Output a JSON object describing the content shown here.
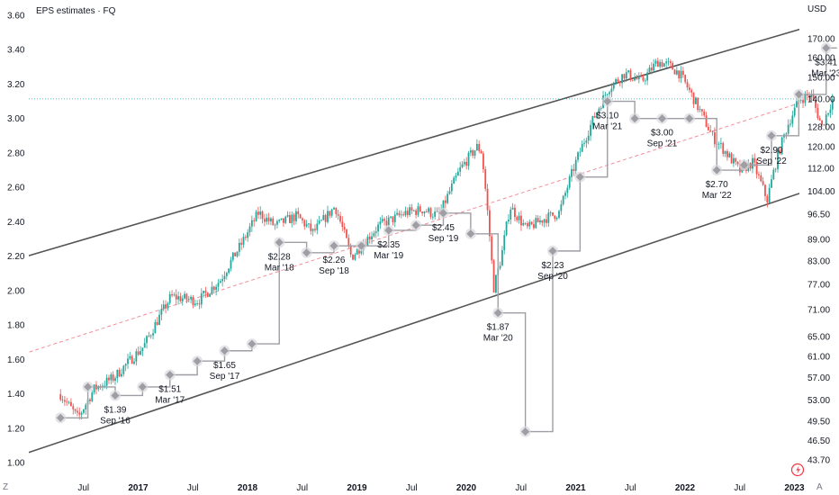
{
  "chart_data": {
    "type": "candlestick",
    "title": "EPS estimates · FQ",
    "currency_label": "USD",
    "corner_left": "Z",
    "corner_right": "A",
    "colors": {
      "up": "#26a69a",
      "down": "#ef5350",
      "channel": "#555555",
      "mid": "#f28e9a",
      "eps_step": "#9e9ea4",
      "eps_marker": "#d8d8de",
      "price_line": "#26a69a"
    },
    "eps_axis": {
      "ticks": [
        "3.60",
        "3.40",
        "3.20",
        "3.00",
        "2.80",
        "2.60",
        "2.40",
        "2.20",
        "2.00",
        "1.80",
        "1.60",
        "1.40",
        "1.20",
        "1.00"
      ],
      "range": [
        1.0,
        3.6
      ]
    },
    "price_axis": {
      "ticks": [
        "170.00",
        "160.00",
        "150.00",
        "140.00",
        "128.00",
        "120.00",
        "112.00",
        "104.00",
        "96.50",
        "89.00",
        "83.00",
        "77.00",
        "71.00",
        "65.00",
        "61.00",
        "57.00",
        "53.00",
        "49.50",
        "46.50",
        "43.70"
      ],
      "scale": "log"
    },
    "time_axis": {
      "ticks": [
        {
          "label": "Jul",
          "t": 2016.5,
          "bold": false
        },
        {
          "label": "2017",
          "t": 2017.0,
          "bold": true
        },
        {
          "label": "Jul",
          "t": 2017.5,
          "bold": false
        },
        {
          "label": "2018",
          "t": 2018.0,
          "bold": true
        },
        {
          "label": "Jul",
          "t": 2018.5,
          "bold": false
        },
        {
          "label": "2019",
          "t": 2019.0,
          "bold": true
        },
        {
          "label": "Jul",
          "t": 2019.5,
          "bold": false
        },
        {
          "label": "2020",
          "t": 2020.0,
          "bold": true
        },
        {
          "label": "Jul",
          "t": 2020.5,
          "bold": false
        },
        {
          "label": "2021",
          "t": 2021.0,
          "bold": true
        },
        {
          "label": "Jul",
          "t": 2021.5,
          "bold": false
        },
        {
          "label": "2022",
          "t": 2022.0,
          "bold": true
        },
        {
          "label": "Jul",
          "t": 2022.5,
          "bold": false
        },
        {
          "label": "2023",
          "t": 2023.0,
          "bold": true
        }
      ]
    },
    "eps_points": [
      {
        "t": 2016.29,
        "eps": 1.26
      },
      {
        "t": 2016.54,
        "eps": 1.44
      },
      {
        "t": 2016.79,
        "eps": 1.39
      },
      {
        "t": 2017.04,
        "eps": 1.44
      },
      {
        "t": 2017.29,
        "eps": 1.51
      },
      {
        "t": 2017.54,
        "eps": 1.59
      },
      {
        "t": 2017.79,
        "eps": 1.65
      },
      {
        "t": 2018.04,
        "eps": 1.69
      },
      {
        "t": 2018.29,
        "eps": 2.28
      },
      {
        "t": 2018.54,
        "eps": 2.22
      },
      {
        "t": 2018.79,
        "eps": 2.26
      },
      {
        "t": 2019.04,
        "eps": 2.26
      },
      {
        "t": 2019.29,
        "eps": 2.35
      },
      {
        "t": 2019.54,
        "eps": 2.38
      },
      {
        "t": 2019.79,
        "eps": 2.45
      },
      {
        "t": 2020.04,
        "eps": 2.33
      },
      {
        "t": 2020.29,
        "eps": 1.87
      },
      {
        "t": 2020.54,
        "eps": 1.18
      },
      {
        "t": 2020.79,
        "eps": 2.23
      },
      {
        "t": 2021.04,
        "eps": 2.66
      },
      {
        "t": 2021.29,
        "eps": 3.1
      },
      {
        "t": 2021.54,
        "eps": 3.0
      },
      {
        "t": 2021.79,
        "eps": 3.0
      },
      {
        "t": 2022.04,
        "eps": 3.0
      },
      {
        "t": 2022.29,
        "eps": 2.7
      },
      {
        "t": 2022.54,
        "eps": 2.73
      },
      {
        "t": 2022.79,
        "eps": 2.9
      },
      {
        "t": 2023.04,
        "eps": 3.14
      },
      {
        "t": 2023.29,
        "eps": 3.41
      }
    ],
    "eps_labels": [
      {
        "value": "$1.39",
        "date": "Sep '16",
        "t": 2016.79,
        "eps": 1.39
      },
      {
        "value": "$1.51",
        "date": "Mar '17",
        "t": 2017.29,
        "eps": 1.51
      },
      {
        "value": "$1.65",
        "date": "Sep '17",
        "t": 2017.79,
        "eps": 1.65
      },
      {
        "value": "$2.28",
        "date": "Mar '18",
        "t": 2018.29,
        "eps": 2.28
      },
      {
        "value": "$2.26",
        "date": "Sep '18",
        "t": 2018.79,
        "eps": 2.26
      },
      {
        "value": "$2.35",
        "date": "Mar '19",
        "t": 2019.29,
        "eps": 2.35
      },
      {
        "value": "$2.45",
        "date": "Sep '19",
        "t": 2019.79,
        "eps": 2.45
      },
      {
        "value": "$1.87",
        "date": "Mar '20",
        "t": 2020.29,
        "eps": 1.87
      },
      {
        "value": "$2.23",
        "date": "Sep '20",
        "t": 2020.79,
        "eps": 2.23
      },
      {
        "value": "$3.10",
        "date": "Mar '21",
        "t": 2021.29,
        "eps": 3.1
      },
      {
        "value": "$3.00",
        "date": "Sep '21",
        "t": 2021.79,
        "eps": 3.0
      },
      {
        "value": "$2.70",
        "date": "Mar '22",
        "t": 2022.29,
        "eps": 2.7
      },
      {
        "value": "$2.90",
        "date": "Sep '22",
        "t": 2022.79,
        "eps": 2.9
      },
      {
        "value": "$3.41",
        "date": "Mar '23",
        "t": 2023.29,
        "eps": 3.41
      }
    ],
    "price_anchors": [
      {
        "t": 2016.29,
        "p": 54
      },
      {
        "t": 2016.45,
        "p": 50
      },
      {
        "t": 2016.6,
        "p": 55
      },
      {
        "t": 2016.78,
        "p": 57
      },
      {
        "t": 2017.05,
        "p": 63
      },
      {
        "t": 2017.3,
        "p": 74
      },
      {
        "t": 2017.55,
        "p": 73
      },
      {
        "t": 2017.75,
        "p": 78
      },
      {
        "t": 2017.95,
        "p": 88
      },
      {
        "t": 2018.1,
        "p": 97
      },
      {
        "t": 2018.25,
        "p": 93
      },
      {
        "t": 2018.45,
        "p": 96
      },
      {
        "t": 2018.6,
        "p": 91
      },
      {
        "t": 2018.8,
        "p": 99
      },
      {
        "t": 2018.95,
        "p": 84
      },
      {
        "t": 2019.2,
        "p": 93
      },
      {
        "t": 2019.45,
        "p": 97
      },
      {
        "t": 2019.6,
        "p": 98
      },
      {
        "t": 2019.75,
        "p": 96
      },
      {
        "t": 2019.95,
        "p": 112
      },
      {
        "t": 2020.1,
        "p": 120
      },
      {
        "t": 2020.14,
        "p": 118
      },
      {
        "t": 2020.2,
        "p": 95
      },
      {
        "t": 2020.25,
        "p": 76
      },
      {
        "t": 2020.32,
        "p": 84
      },
      {
        "t": 2020.4,
        "p": 99
      },
      {
        "t": 2020.55,
        "p": 92
      },
      {
        "t": 2020.7,
        "p": 95
      },
      {
        "t": 2020.85,
        "p": 97
      },
      {
        "t": 2021.0,
        "p": 114
      },
      {
        "t": 2021.15,
        "p": 130
      },
      {
        "t": 2021.3,
        "p": 145
      },
      {
        "t": 2021.45,
        "p": 152
      },
      {
        "t": 2021.6,
        "p": 148
      },
      {
        "t": 2021.75,
        "p": 158
      },
      {
        "t": 2021.85,
        "p": 156
      },
      {
        "t": 2021.95,
        "p": 152
      },
      {
        "t": 2022.1,
        "p": 138
      },
      {
        "t": 2022.25,
        "p": 124
      },
      {
        "t": 2022.35,
        "p": 119
      },
      {
        "t": 2022.5,
        "p": 111
      },
      {
        "t": 2022.62,
        "p": 114
      },
      {
        "t": 2022.75,
        "p": 101
      },
      {
        "t": 2022.85,
        "p": 117
      },
      {
        "t": 2022.95,
        "p": 130
      },
      {
        "t": 2023.05,
        "p": 140
      },
      {
        "t": 2023.15,
        "p": 142
      },
      {
        "t": 2023.25,
        "p": 128
      },
      {
        "t": 2023.35,
        "p": 140
      }
    ],
    "current_price": 140,
    "channel": {
      "upper": [
        {
          "t": 2015.95,
          "p": 84
        },
        {
          "t": 2023.2,
          "p": 178
        }
      ],
      "lower": [
        {
          "t": 2015.95,
          "p": 44.5
        },
        {
          "t": 2023.35,
          "p": 107
        }
      ],
      "mid": [
        {
          "t": 2015.95,
          "p": 61.5
        },
        {
          "t": 2023.35,
          "p": 143
        }
      ]
    }
  }
}
